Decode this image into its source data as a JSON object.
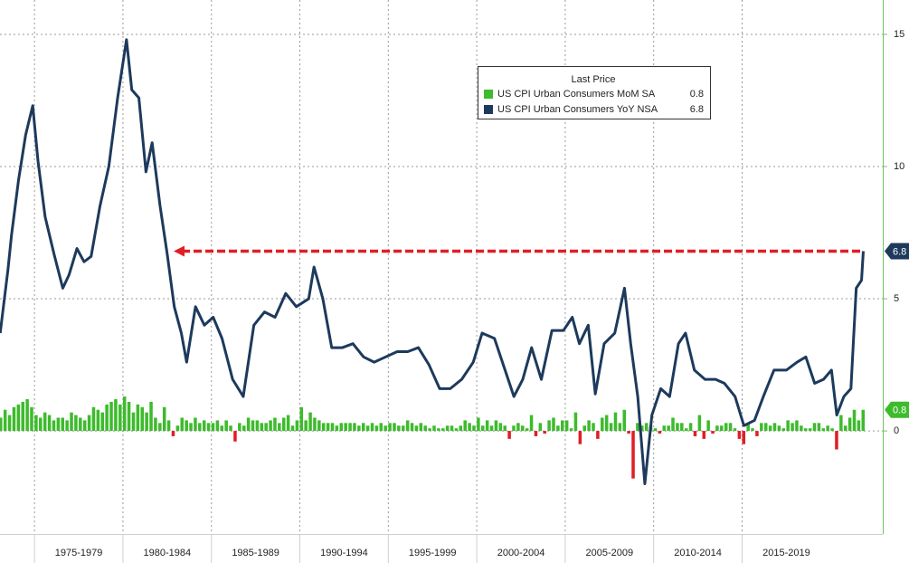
{
  "chart_data": {
    "type": "combo",
    "legend_title": "Last Price",
    "xlim": [
      1973.05,
      2022.95
    ],
    "xticks": [
      {
        "value": 1975,
        "label": "1975-1979"
      },
      {
        "value": 1980,
        "label": "1980-1984"
      },
      {
        "value": 1985,
        "label": "1985-1989"
      },
      {
        "value": 1990,
        "label": "1990-1994"
      },
      {
        "value": 1995,
        "label": "1995-1999"
      },
      {
        "value": 2000,
        "label": "2000-2004"
      },
      {
        "value": 2005,
        "label": "2005-2009"
      },
      {
        "value": 2010,
        "label": "2010-2014"
      },
      {
        "value": 2015,
        "label": "2015-2019"
      }
    ],
    "ylim": [
      -3.9,
      16.3
    ],
    "yticks": [
      0,
      5,
      10,
      15
    ],
    "grid": true,
    "series": [
      {
        "name": "US CPI Urban Consumers MoM SA",
        "type": "bar",
        "color": "#3dbb2c",
        "negative_color": "#e01e26",
        "last": 0.8,
        "x": [
          1973,
          1973.25,
          1973.5,
          1973.75,
          1974,
          1974.25,
          1974.5,
          1974.75,
          1975,
          1975.25,
          1975.5,
          1975.75,
          1976,
          1976.25,
          1976.5,
          1976.75,
          1977,
          1977.25,
          1977.5,
          1977.75,
          1978,
          1978.25,
          1978.5,
          1978.75,
          1979,
          1979.25,
          1979.5,
          1979.75,
          1980,
          1980.25,
          1980.5,
          1980.75,
          1981,
          1981.25,
          1981.5,
          1981.75,
          1982,
          1982.25,
          1982.5,
          1982.75,
          1983,
          1983.25,
          1983.5,
          1983.75,
          1984,
          1984.25,
          1984.5,
          1984.75,
          1985,
          1985.25,
          1985.5,
          1985.75,
          1986,
          1986.25,
          1986.5,
          1986.75,
          1987,
          1987.25,
          1987.5,
          1987.75,
          1988,
          1988.25,
          1988.5,
          1988.75,
          1989,
          1989.25,
          1989.5,
          1989.75,
          1990,
          1990.25,
          1990.5,
          1990.75,
          1991,
          1991.25,
          1991.5,
          1991.75,
          1992,
          1992.25,
          1992.5,
          1992.75,
          1993,
          1993.25,
          1993.5,
          1993.75,
          1994,
          1994.25,
          1994.5,
          1994.75,
          1995,
          1995.25,
          1995.5,
          1995.75,
          1996,
          1996.25,
          1996.5,
          1996.75,
          1997,
          1997.25,
          1997.5,
          1997.75,
          1998,
          1998.25,
          1998.5,
          1998.75,
          1999,
          1999.25,
          1999.5,
          1999.75,
          2000,
          2000.25,
          2000.5,
          2000.75,
          2001,
          2001.25,
          2001.5,
          2001.75,
          2002,
          2002.25,
          2002.5,
          2002.75,
          2003,
          2003.25,
          2003.5,
          2003.75,
          2004,
          2004.25,
          2004.5,
          2004.75,
          2005,
          2005.25,
          2005.5,
          2005.75,
          2006,
          2006.25,
          2006.5,
          2006.75,
          2007,
          2007.25,
          2007.5,
          2007.75,
          2008,
          2008.25,
          2008.5,
          2008.75,
          2009,
          2009.25,
          2009.5,
          2009.75,
          2010,
          2010.25,
          2010.5,
          2010.75,
          2011,
          2011.25,
          2011.5,
          2011.75,
          2012,
          2012.25,
          2012.5,
          2012.75,
          2013,
          2013.25,
          2013.5,
          2013.75,
          2014,
          2014.25,
          2014.5,
          2014.75,
          2015,
          2015.25,
          2015.5,
          2015.75,
          2016,
          2016.25,
          2016.5,
          2016.75,
          2017,
          2017.25,
          2017.5,
          2017.75,
          2018,
          2018.25,
          2018.5,
          2018.75,
          2019,
          2019.25,
          2019.5,
          2019.75,
          2020,
          2020.25,
          2020.5,
          2020.75,
          2021,
          2021.25,
          2021.5,
          2021.75
        ],
        "values": [
          0.5,
          0.8,
          0.6,
          0.9,
          1.0,
          1.1,
          1.2,
          0.9,
          0.6,
          0.5,
          0.7,
          0.6,
          0.4,
          0.5,
          0.5,
          0.4,
          0.7,
          0.6,
          0.5,
          0.4,
          0.6,
          0.9,
          0.8,
          0.7,
          1.0,
          1.1,
          1.2,
          1.0,
          1.3,
          1.1,
          0.7,
          1.0,
          0.9,
          0.7,
          1.1,
          0.5,
          0.3,
          0.9,
          0.4,
          -0.2,
          0.2,
          0.5,
          0.4,
          0.3,
          0.5,
          0.3,
          0.4,
          0.3,
          0.3,
          0.4,
          0.2,
          0.4,
          0.2,
          -0.4,
          0.3,
          0.2,
          0.5,
          0.4,
          0.4,
          0.3,
          0.3,
          0.4,
          0.5,
          0.3,
          0.5,
          0.6,
          0.2,
          0.4,
          0.9,
          0.4,
          0.7,
          0.5,
          0.4,
          0.3,
          0.3,
          0.3,
          0.2,
          0.3,
          0.3,
          0.3,
          0.3,
          0.2,
          0.3,
          0.2,
          0.3,
          0.2,
          0.3,
          0.2,
          0.3,
          0.3,
          0.2,
          0.2,
          0.4,
          0.3,
          0.2,
          0.3,
          0.2,
          0.1,
          0.2,
          0.1,
          0.1,
          0.2,
          0.2,
          0.1,
          0.2,
          0.4,
          0.3,
          0.2,
          0.5,
          0.2,
          0.4,
          0.2,
          0.4,
          0.3,
          0.2,
          -0.3,
          0.2,
          0.3,
          0.2,
          0.1,
          0.6,
          -0.2,
          0.3,
          -0.1,
          0.4,
          0.5,
          0.2,
          0.4,
          0.4,
          0.1,
          0.7,
          -0.5,
          0.2,
          0.4,
          0.3,
          -0.3,
          0.5,
          0.6,
          0.3,
          0.7,
          0.3,
          0.8,
          -0.1,
          -1.8,
          0.3,
          0.2,
          0.3,
          0.2,
          0.1,
          -0.1,
          0.2,
          0.2,
          0.5,
          0.3,
          0.3,
          0.1,
          0.3,
          -0.2,
          0.6,
          -0.3,
          0.4,
          -0.1,
          0.2,
          0.2,
          0.3,
          0.3,
          0.1,
          -0.3,
          -0.5,
          0.3,
          0.1,
          -0.2,
          0.3,
          0.3,
          0.2,
          0.3,
          0.2,
          0.1,
          0.4,
          0.3,
          0.4,
          0.2,
          0.1,
          0.1,
          0.3,
          0.3,
          0.1,
          0.2,
          0.1,
          -0.7,
          0.6,
          0.2,
          0.5,
          0.8,
          0.4,
          0.8
        ]
      },
      {
        "name": "US CPI Urban Consumers YoY NSA",
        "type": "line",
        "color": "#1d3a5c",
        "last": 6.8,
        "x": [
          1973.06,
          1973.5,
          1973.7,
          1974.1,
          1974.5,
          1974.9,
          1975.2,
          1975.6,
          1976.1,
          1976.6,
          1976.95,
          1977.4,
          1977.8,
          1978.2,
          1978.7,
          1979.2,
          1979.7,
          1980.2,
          1980.5,
          1980.9,
          1981.3,
          1981.65,
          1982.1,
          1982.5,
          1982.9,
          1983.3,
          1983.6,
          1984.1,
          1984.6,
          1985.1,
          1985.6,
          1986.2,
          1986.8,
          1987.4,
          1988.0,
          1988.6,
          1989.2,
          1989.8,
          1990.5,
          1990.8,
          1991.3,
          1991.8,
          1992.4,
          1993.0,
          1993.6,
          1994.2,
          1994.85,
          1995.5,
          1996.1,
          1996.7,
          1997.3,
          1997.9,
          1998.5,
          1999.15,
          1999.8,
          2000.3,
          2001.0,
          2001.6,
          2002.1,
          2002.6,
          2003.1,
          2003.65,
          2004.25,
          2004.9,
          2005.4,
          2005.8,
          2006.3,
          2006.7,
          2007.2,
          2007.8,
          2008.35,
          2008.7,
          2009.1,
          2009.5,
          2009.9,
          2010.4,
          2010.9,
          2011.4,
          2011.8,
          2012.3,
          2012.9,
          2013.5,
          2014.0,
          2014.6,
          2015.1,
          2015.7,
          2016.2,
          2016.8,
          2017.5,
          2018.1,
          2018.6,
          2019.1,
          2019.6,
          2020.05,
          2020.35,
          2020.75,
          2021.15,
          2021.45,
          2021.75,
          2021.85
        ],
        "values": [
          3.7,
          6.1,
          7.4,
          9.5,
          11.2,
          12.3,
          10.2,
          8.1,
          6.7,
          5.4,
          5.9,
          6.9,
          6.4,
          6.6,
          8.5,
          10.0,
          12.6,
          14.8,
          12.9,
          12.6,
          9.8,
          10.9,
          8.5,
          6.7,
          4.7,
          3.7,
          2.6,
          4.7,
          4.0,
          4.3,
          3.5,
          1.95,
          1.3,
          4.0,
          4.5,
          4.3,
          5.2,
          4.7,
          5.0,
          6.2,
          5.0,
          3.15,
          3.15,
          3.3,
          2.8,
          2.6,
          2.8,
          3.0,
          3.0,
          3.15,
          2.5,
          1.6,
          1.6,
          1.95,
          2.6,
          3.7,
          3.5,
          2.3,
          1.3,
          1.95,
          3.15,
          1.95,
          3.8,
          3.8,
          4.3,
          3.3,
          4.0,
          1.4,
          3.3,
          3.7,
          5.4,
          3.3,
          1.3,
          -2.0,
          0.6,
          1.6,
          1.3,
          3.3,
          3.7,
          2.3,
          1.95,
          1.95,
          1.8,
          1.3,
          0.2,
          0.4,
          1.3,
          2.3,
          2.3,
          2.6,
          2.8,
          1.8,
          1.95,
          2.3,
          0.6,
          1.3,
          1.6,
          5.4,
          5.7,
          6.8
        ]
      }
    ]
  }
}
